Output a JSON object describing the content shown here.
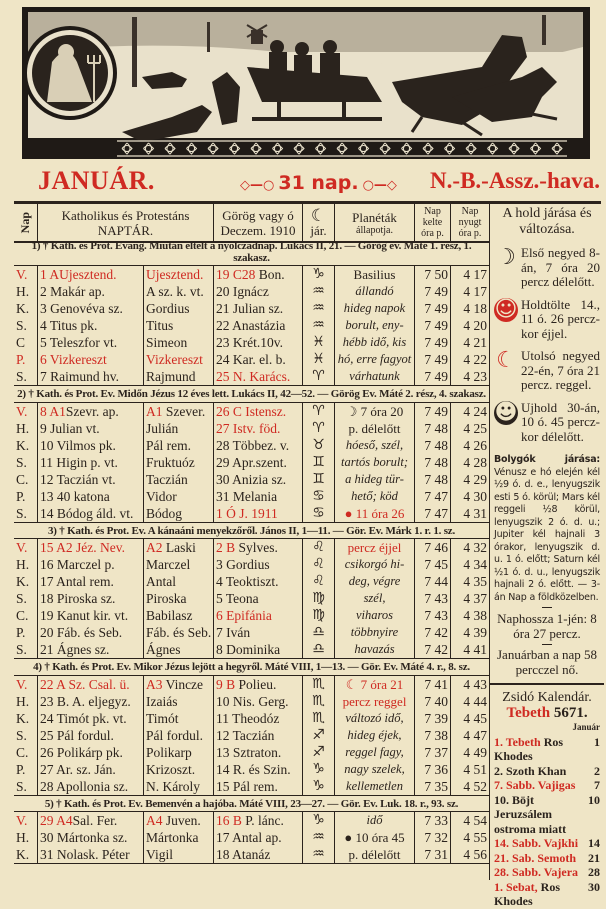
{
  "title": {
    "month": "JANUÁR.",
    "days": "31 nap.",
    "alt_name": "N.-B.-Assz.-hava."
  },
  "header": {
    "nap": "Nap",
    "catholic": [
      "Katholikus és Protestáns",
      "NAPTÁR."
    ],
    "greek": [
      "Görög vagy ó",
      "Deczem. 1910"
    ],
    "moon": [
      "☾",
      "jár."
    ],
    "planets": [
      "Planéták",
      "állapotja."
    ],
    "sunrise": [
      "Nap",
      "kelte",
      "óra p."
    ],
    "sunset": [
      "Nap",
      "nyugt",
      "óra p."
    ]
  },
  "colors": {
    "accent_red": "#cf2a22",
    "paper": "#efe5c6",
    "ink": "#2b231d"
  },
  "weeks": [
    {
      "gospel": "1) † Kath. és Prot. Evang. Miután eltelt a nyolczadnap. Lukács II, 21. — Görög ev. Máté 1. rész, 1. szakasz.",
      "days": [
        {
          "dow": {
            "r": "V."
          },
          "cath": {
            "r": "1 AUjesztend."
          },
          "prot": {
            "r": "Ujesztend."
          },
          "greek": {
            "r": "19 C28",
            "t": " Bon."
          },
          "zod": "capricorn",
          "weather": {
            "t": "Basilius",
            "plain": true
          },
          "rise": "7 50",
          "set": "4 17"
        },
        {
          "dow": {
            "t": "H."
          },
          "cath": {
            "t": "2 Makár ap."
          },
          "prot": {
            "t": "A sz. k. vt."
          },
          "greek": {
            "t": "20 Ignácz"
          },
          "zod": "aquarius",
          "weather": {
            "t": "állandó"
          },
          "rise": "7 49",
          "set": "4 17"
        },
        {
          "dow": {
            "t": "K."
          },
          "cath": {
            "t": "3 Genovéva sz."
          },
          "prot": {
            "t": "Gordius"
          },
          "greek": {
            "t": "21 Julian sz."
          },
          "zod": "aquarius",
          "weather": {
            "t": "hideg napok"
          },
          "rise": "7 49",
          "set": "4 18"
        },
        {
          "dow": {
            "t": "S."
          },
          "cath": {
            "t": "4 Titus pk."
          },
          "prot": {
            "t": "Titus"
          },
          "greek": {
            "t": "22 Anastázia"
          },
          "zod": "aquarius",
          "weather": {
            "t": "borult, eny-"
          },
          "rise": "7 49",
          "set": "4 20"
        },
        {
          "dow": {
            "t": "C"
          },
          "cath": {
            "t": "5 Teleszfor vt."
          },
          "prot": {
            "t": "Simeon"
          },
          "greek": {
            "t": "23 Krét.10v."
          },
          "zod": "pisces",
          "weather": {
            "t": "hébb idő, kis"
          },
          "rise": "7 49",
          "set": "4 21"
        },
        {
          "dow": {
            "r": "P."
          },
          "cath": {
            "r": "6 Vizkereszt"
          },
          "prot": {
            "r": "Vizkereszt"
          },
          "greek": {
            "t": "24 Kar. el. b."
          },
          "zod": "pisces",
          "weather": {
            "t": "hó, erre fagyot"
          },
          "rise": "7 49",
          "set": "4 22"
        },
        {
          "dow": {
            "t": "S."
          },
          "cath": {
            "t": "7 Raimund hv."
          },
          "prot": {
            "t": "Rajmund"
          },
          "greek": {
            "r": "25 N. Karács."
          },
          "zod": "aries",
          "weather": {
            "t": "várhatunk"
          },
          "rise": "7 49",
          "set": "4 23"
        }
      ]
    },
    {
      "gospel": "2) † Kath. és Prot. Ev. Midőn Jézus 12 éves lett. Lukács II, 42—52. — Görög Ev. Máté 2. rész, 4. szakasz.",
      "days": [
        {
          "dow": {
            "r": "V."
          },
          "cath": {
            "r": "8 A1",
            "t": "Szevr. ap."
          },
          "prot": {
            "r": "A1",
            "t": " Szever."
          },
          "greek": {
            "r": "26 C Istensz."
          },
          "zod": "aries",
          "weather": {
            "moon": "first-quarter",
            "t": "7 óra 20",
            "plain": true
          },
          "rise": "7 49",
          "set": "4 24"
        },
        {
          "dow": {
            "t": "H."
          },
          "cath": {
            "t": "9 Julian vt."
          },
          "prot": {
            "t": "Julián"
          },
          "greek": {
            "r": "27 Istv. föd."
          },
          "zod": "aries",
          "weather": {
            "t": "p. délelőtt",
            "plain": true
          },
          "rise": "7 48",
          "set": "4 25"
        },
        {
          "dow": {
            "t": "K."
          },
          "cath": {
            "t": "10 Vilmos pk."
          },
          "prot": {
            "t": "Pál rem."
          },
          "greek": {
            "t": "28 Többez. v."
          },
          "zod": "taurus",
          "weather": {
            "t": "hóeső, szél,"
          },
          "rise": "7 48",
          "set": "4 26"
        },
        {
          "dow": {
            "t": "S."
          },
          "cath": {
            "t": "11 Higin p. vt."
          },
          "prot": {
            "t": "Fruktuóz"
          },
          "greek": {
            "t": "29 Apr.szent."
          },
          "zod": "gemini",
          "weather": {
            "t": "tartós borult;"
          },
          "rise": "7 48",
          "set": "4 28"
        },
        {
          "dow": {
            "t": "C."
          },
          "cath": {
            "t": "12 Taczián vt."
          },
          "prot": {
            "t": "Taczián"
          },
          "greek": {
            "t": "30 Anizia sz."
          },
          "zod": "gemini",
          "weather": {
            "t": "a hideg tür-"
          },
          "rise": "7 48",
          "set": "4 29"
        },
        {
          "dow": {
            "t": "P."
          },
          "cath": {
            "t": "13 40 katona"
          },
          "prot": {
            "t": "Vidor"
          },
          "greek": {
            "t": "31 Melania"
          },
          "zod": "cancer",
          "weather": {
            "t": "hető; köd"
          },
          "rise": "7 47",
          "set": "4 30"
        },
        {
          "dow": {
            "t": "S."
          },
          "cath": {
            "t": "14 Bódog áld. vt."
          },
          "prot": {
            "t": "Bódog"
          },
          "greek": {
            "r": "1 Ó J. 1911"
          },
          "zod": "cancer",
          "weather": {
            "moon": "full-moon",
            "r": "11 óra 26",
            "plain": true
          },
          "rise": "7 47",
          "set": "4 31"
        }
      ]
    },
    {
      "gospel": "3) † Kath. és Prot. Ev. A kánaáni menyekzőről. János II, 1—11. — Gör. Ev. Márk 1. r. 1. sz.",
      "days": [
        {
          "dow": {
            "r": "V."
          },
          "cath": {
            "r": "15 A2 Jéz. Nev."
          },
          "prot": {
            "r": "A2",
            "t": " Laski"
          },
          "greek": {
            "r": "2 B",
            "t": " Sylves."
          },
          "zod": "leo",
          "weather": {
            "r": "percz éjjel",
            "plain": true
          },
          "rise": "7 46",
          "set": "4 32"
        },
        {
          "dow": {
            "t": "H."
          },
          "cath": {
            "t": "16 Marczel p."
          },
          "prot": {
            "t": "Marczel"
          },
          "greek": {
            "t": "3 Gordius"
          },
          "zod": "leo",
          "weather": {
            "t": "csikorgó hi-"
          },
          "rise": "7 45",
          "set": "4 34"
        },
        {
          "dow": {
            "t": "K."
          },
          "cath": {
            "t": "17 Antal rem."
          },
          "prot": {
            "t": "Antal"
          },
          "greek": {
            "t": "4 Teoktiszt."
          },
          "zod": "leo",
          "weather": {
            "t": "deg, végre"
          },
          "rise": "7 44",
          "set": "4 35"
        },
        {
          "dow": {
            "t": "S."
          },
          "cath": {
            "t": "18 Piroska sz."
          },
          "prot": {
            "t": "Piroska"
          },
          "greek": {
            "t": "5 Teona"
          },
          "zod": "virgo",
          "weather": {
            "t": "szél,"
          },
          "rise": "7 43",
          "set": "4 37"
        },
        {
          "dow": {
            "t": "C."
          },
          "cath": {
            "t": "19 Kanut kir. vt."
          },
          "prot": {
            "t": "Babilasz"
          },
          "greek": {
            "r": "6 Epifánia"
          },
          "zod": "virgo",
          "weather": {
            "t": "viharos"
          },
          "rise": "7 43",
          "set": "4 38"
        },
        {
          "dow": {
            "t": "P."
          },
          "cath": {
            "t": "20 Fáb. és Seb."
          },
          "prot": {
            "t": "Fáb. és Seb."
          },
          "greek": {
            "t": "7 Iván"
          },
          "zod": "libra",
          "weather": {
            "t": "többnyire"
          },
          "rise": "7 42",
          "set": "4 39"
        },
        {
          "dow": {
            "t": "S."
          },
          "cath": {
            "t": "21 Ágnes sz."
          },
          "prot": {
            "t": "Ágnes"
          },
          "greek": {
            "t": "8 Dominika"
          },
          "zod": "libra",
          "weather": {
            "t": "havazás"
          },
          "rise": "7 42",
          "set": "4 41"
        }
      ]
    },
    {
      "gospel": "4) † Kath. és Prot. Ev. Mikor Jézus lejött a hegyről. Máté VIII, 1—13. — Gör. Ev. Máté 4. r., 8. sz.",
      "days": [
        {
          "dow": {
            "r": "V."
          },
          "cath": {
            "r": "22 A Sz. Csal. ü."
          },
          "prot": {
            "r": "A3",
            "t": " Vincze"
          },
          "greek": {
            "r": "9 B",
            "t": " Polieu."
          },
          "zod": "scorpio",
          "weather": {
            "moon": "last-quarter",
            "r": "7 óra 21",
            "plain": true
          },
          "rise": "7 41",
          "set": "4 43"
        },
        {
          "dow": {
            "t": "H."
          },
          "cath": {
            "t": "23 B. A. eljegyz."
          },
          "prot": {
            "t": "Izaiás"
          },
          "greek": {
            "t": "10 Nis. Gerg."
          },
          "zod": "scorpio",
          "weather": {
            "r": "percz reggel",
            "plain": true
          },
          "rise": "7 40",
          "set": "4 44"
        },
        {
          "dow": {
            "t": "K."
          },
          "cath": {
            "t": "24 Timót pk. vt."
          },
          "prot": {
            "t": "Timót"
          },
          "greek": {
            "t": "11 Theodóz"
          },
          "zod": "scorpio",
          "weather": {
            "t": "változó idő,"
          },
          "rise": "7 39",
          "set": "4 45"
        },
        {
          "dow": {
            "t": "S."
          },
          "cath": {
            "t": "25 Pál fordul."
          },
          "prot": {
            "t": "Pál fordul."
          },
          "greek": {
            "t": "12 Taczián"
          },
          "zod": "sagittarius",
          "weather": {
            "t": "hideg éjek,"
          },
          "rise": "7 38",
          "set": "4 47"
        },
        {
          "dow": {
            "t": "C."
          },
          "cath": {
            "t": "26 Polikárp pk."
          },
          "prot": {
            "t": "Polikarp"
          },
          "greek": {
            "t": "13 Sztraton."
          },
          "zod": "sagittarius",
          "weather": {
            "t": "reggel fagy,"
          },
          "rise": "7 37",
          "set": "4 49"
        },
        {
          "dow": {
            "t": "P."
          },
          "cath": {
            "t": "27 Ar. sz. Ján."
          },
          "prot": {
            "t": "Krizoszt."
          },
          "greek": {
            "t": "14 R. és Szin."
          },
          "zod": "capricorn",
          "weather": {
            "t": "nagy szelek,"
          },
          "rise": "7 36",
          "set": "4 51"
        },
        {
          "dow": {
            "t": "S."
          },
          "cath": {
            "t": "28 Apollonia sz."
          },
          "prot": {
            "t": "N. Károly"
          },
          "greek": {
            "t": "15 Pál rem."
          },
          "zod": "capricorn",
          "weather": {
            "t": "kellemetlen"
          },
          "rise": "7 35",
          "set": "4 52"
        }
      ]
    },
    {
      "gospel": "5) † Kath. és Prot. Ev. Bemenvén a hajóba. Máté VIII, 23—27. — Gör. Ev. Luk. 18. r., 93. sz.",
      "days": [
        {
          "dow": {
            "r": "V."
          },
          "cath": {
            "r": "29 A4",
            "t": "Sal. Fer."
          },
          "prot": {
            "r": "A4",
            "t": " Juven."
          },
          "greek": {
            "r": "16 B",
            "t": " P. lánc."
          },
          "zod": "capricorn",
          "weather": {
            "t": "idő"
          },
          "rise": "7 33",
          "set": "4 54"
        },
        {
          "dow": {
            "t": "H."
          },
          "cath": {
            "t": "30 Mártonka sz."
          },
          "prot": {
            "t": "Mártonka"
          },
          "greek": {
            "t": "17 Antal ap."
          },
          "zod": "aquarius",
          "weather": {
            "moon": "new-moon",
            "t": "10 óra 45",
            "plain": true
          },
          "rise": "7 32",
          "set": "4 55"
        },
        {
          "dow": {
            "t": "K."
          },
          "cath": {
            "t": "31 Nolask. Péter"
          },
          "prot": {
            "t": "Vigil"
          },
          "greek": {
            "t": "18 Atanáz"
          },
          "zod": "aquarius",
          "weather": {
            "t": "p. délelőtt",
            "plain": true
          },
          "rise": "7 31",
          "set": "4 56"
        }
      ]
    }
  ],
  "sidebar": {
    "heading": "A hold járása és változása.",
    "phases": [
      {
        "icon": "first-quarter-moon",
        "text": "Első negyed 8-án, 7 óra 20 percz délelőtt."
      },
      {
        "icon": "full-moon",
        "text": "Holdtölte 14., 11 ó. 26 percz-kor éjjel."
      },
      {
        "icon": "last-quarter-moon",
        "text": "Utolsó negyed 22-én, 7 óra 21 percz. reggel."
      },
      {
        "icon": "new-moon",
        "text": "Ujhold 30-án, 10 ó. 45 percz-kor délelőtt."
      }
    ],
    "planets_label": "Bolygók járása:",
    "planets_text": "Vénusz e hó elején kél ½9 ó. d. e., lenyugszik esti 5 ó. körül; Mars kél reggeli ½8 körül, lenyugszik 2 ó. d. u.; Jupiter kél hajnali 3 órakor, lenyugszik d. u. 1 ó. előtt; Saturn kél ½1 ó. d. u., lenyugszik hajnali 2 ó. előtt. — 3-án Nap a földközelben.",
    "daylength": "Naphossza 1-jén: 8 óra 27 percz.",
    "daygrowth": "Januárban a nap 58 percczel nő.",
    "jewish": {
      "heading": "Zsidó Kalendár.",
      "month": "Tebeth",
      "year": "5671.",
      "col_label": "Január",
      "entries": [
        {
          "r": "1. Tebeth",
          "t": " Ros Khodes",
          "n": "1"
        },
        {
          "t": "2. Szoth Khan",
          "n": "2"
        },
        {
          "r": "7. Sabb. Vajigas",
          "n": "7"
        },
        {
          "t": "10. Böjt Jeruzsálem ostroma miatt",
          "n": "10"
        },
        {
          "r": "14. Sabb. Vajkhi",
          "n": "14"
        },
        {
          "r": "21. Sab. Semoth",
          "n": "21"
        },
        {
          "r": "28. Sabb. Vajera",
          "n": "28"
        },
        {
          "r": "1. Sebat,",
          "t": " Ros Khodes",
          "n": "30"
        }
      ]
    }
  }
}
